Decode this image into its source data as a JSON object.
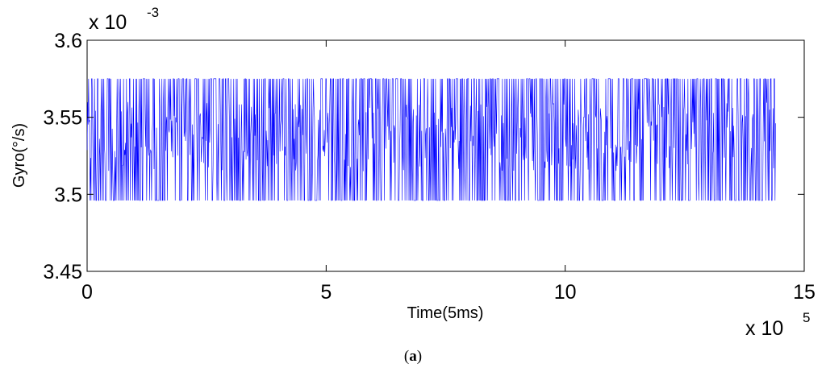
{
  "chart_data": {
    "type": "line",
    "xlabel": "Time(5ms)",
    "ylabel": "Gyro(°/s)",
    "xlim": [
      0,
      15
    ],
    "ylim": [
      3.45,
      3.6
    ],
    "x_ticks": [
      "0",
      "5",
      "10",
      "15"
    ],
    "y_ticks": [
      "3.45",
      "3.5",
      "3.55",
      "3.6"
    ],
    "x_multiplier": {
      "base": "x 10",
      "exponent": "5"
    },
    "y_multiplier": {
      "base": "x 10",
      "exponent": "-3"
    },
    "series": [
      {
        "color": "#0000ff",
        "x_range": [
          0,
          14.4
        ],
        "y_min": 3.496,
        "y_max": 3.575,
        "y_dense_band": [
          3.515,
          3.56
        ],
        "description_values": "noisy signal oscillating between approximately 3.496 and 3.575 (x 10^-3) over 0 to 14.4 (x 10^5) samples"
      }
    ],
    "grid": false,
    "legend": "none"
  },
  "caption": {
    "open": "(",
    "letter": "a",
    "close": ")"
  }
}
